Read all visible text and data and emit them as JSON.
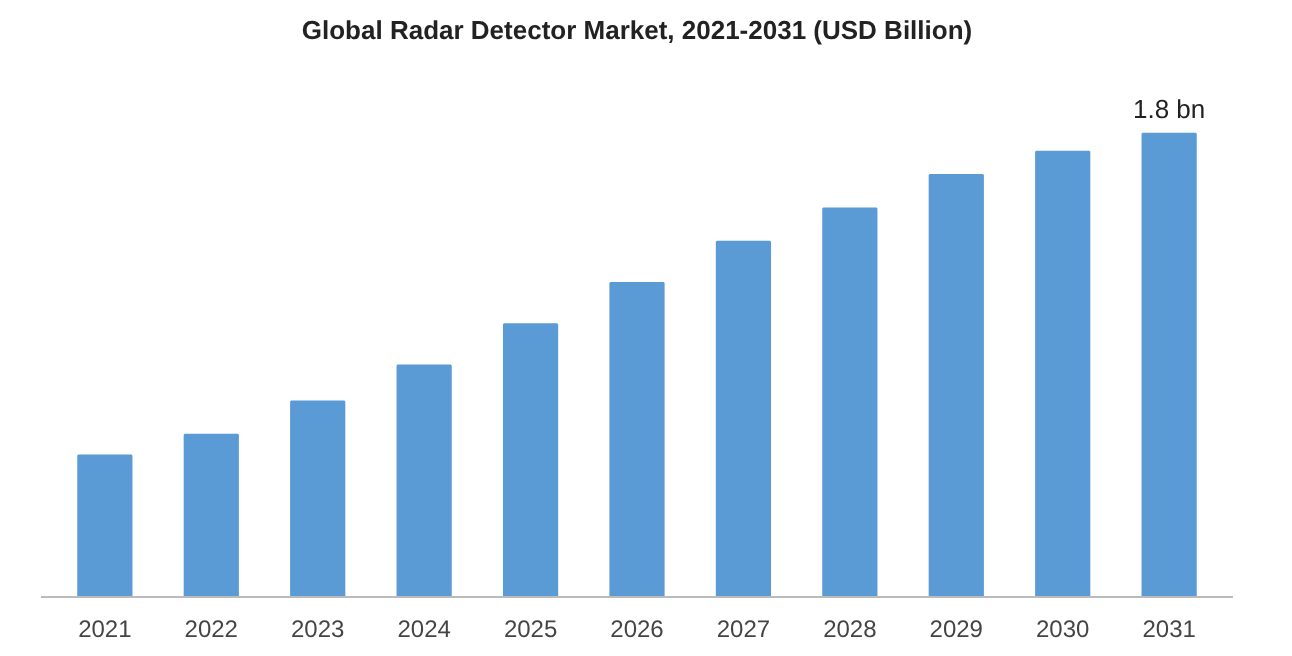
{
  "chart_data": {
    "type": "bar",
    "title": "Global Radar Detector Market, 2021-2031 (USD Billion)",
    "categories": [
      "2021",
      "2022",
      "2023",
      "2024",
      "2025",
      "2026",
      "2027",
      "2028",
      "2029",
      "2030",
      "2031"
    ],
    "values": [
      0.55,
      0.63,
      0.76,
      0.9,
      1.06,
      1.22,
      1.38,
      1.51,
      1.64,
      1.73,
      1.8
    ],
    "value_labels": [
      null,
      null,
      null,
      null,
      null,
      null,
      null,
      null,
      null,
      null,
      "1.8 bn"
    ],
    "color": "#5b9bd5",
    "tick_labels": "x",
    "grid": false
  }
}
